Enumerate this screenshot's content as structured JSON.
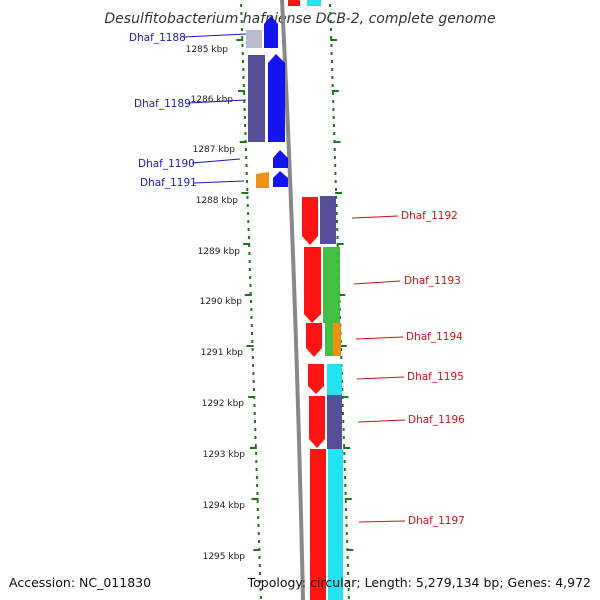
{
  "title": "Desulfitobacterium hafniense DCB-2, complete genome",
  "footer": {
    "accession": "Accession: NC_011830",
    "topology": "Topology: circular; Length: 5,279,134 bp; Genes: 4,972"
  },
  "colors": {
    "backbone": "#888888",
    "tick": "#1a7a1a",
    "label_left": "#1a1ab8",
    "label_right": "#cc1111",
    "red": "#ff0000",
    "blue": "#0000ee",
    "slate": "#4a3f8f",
    "green": "#33bb33",
    "orange": "#ee8800",
    "cyan": "#11e0ee",
    "lavender": "#b4b4cc"
  },
  "kbp_labels": [
    "1285 kbp",
    "1286 kbp",
    "1287 kbp",
    "1288 kbp",
    "1289 kbp",
    "1290 kbp",
    "1291 kbp",
    "1292 kbp",
    "1293 kbp",
    "1294 kbp",
    "1295 kbp"
  ],
  "gene_labels": {
    "left": [
      "Dhaf_1188",
      "Dhaf_1189",
      "Dhaf_1190",
      "Dhaf_1191"
    ],
    "right": [
      "Dhaf_1192",
      "Dhaf_1193",
      "Dhaf_1194",
      "Dhaf_1195",
      "Dhaf_1196",
      "Dhaf_1197"
    ]
  }
}
